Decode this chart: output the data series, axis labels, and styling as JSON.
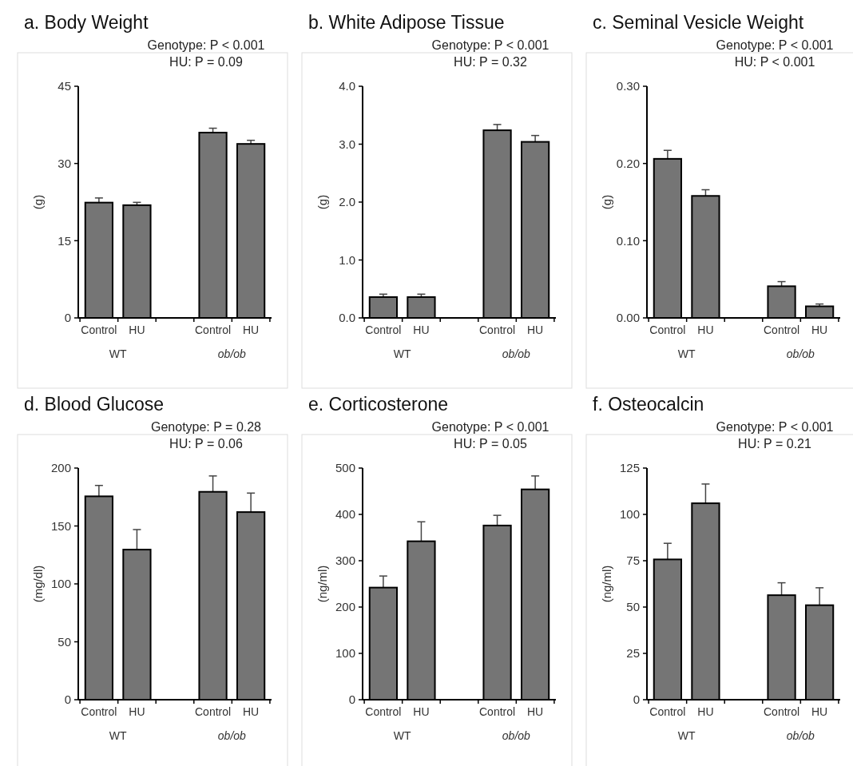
{
  "chart_data": [
    {
      "type": "bar",
      "title": "a. Body Weight",
      "ylabel": "(g)",
      "categories": [
        "Control",
        "HU",
        null,
        "Control",
        "HU"
      ],
      "color": "#757575",
      "values": [
        22.4,
        21.9,
        null,
        36.0,
        33.8
      ],
      "errors": [
        0.9,
        0.55,
        null,
        0.85,
        0.7
      ],
      "ylim": [
        0,
        45
      ],
      "yticks": [
        0,
        15,
        30,
        45
      ],
      "annotations": [
        "Genotype:  P < 0.001",
        "HU: P = 0.09",
        "WT",
        "ob/ob"
      ]
    },
    {
      "type": "bar",
      "title": "b. White Adipose Tissue",
      "ylabel": "(g)",
      "categories": [
        "Control",
        "HU",
        null,
        "Control",
        "HU"
      ],
      "color": "#757575",
      "values": [
        0.36,
        0.36,
        null,
        3.24,
        3.04
      ],
      "errors": [
        0.05,
        0.05,
        null,
        0.1,
        0.11
      ],
      "ylim": [
        0,
        4
      ],
      "yticks": [
        {
          "value": 0,
          "label": "0.0"
        },
        {
          "value": 1,
          "label": "1.0"
        },
        {
          "value": 2,
          "label": "2.0"
        },
        {
          "value": 3,
          "label": "3.0"
        },
        {
          "value": 4,
          "label": "4.0"
        }
      ],
      "annotations": [
        "Genotype:  P < 0.001",
        "HU: P = 0.32",
        "WT",
        "ob/ob"
      ]
    },
    {
      "type": "bar",
      "title": "c. Seminal Vesicle Weight",
      "ylabel": "(g)",
      "categories": [
        "Control",
        "HU",
        null,
        "Control",
        "HU"
      ],
      "color": "#757575",
      "values": [
        0.206,
        0.158,
        null,
        0.041,
        0.015
      ],
      "errors": [
        0.011,
        0.008,
        null,
        0.006,
        0.003
      ],
      "ylim": [
        0,
        0.3
      ],
      "yticks": [
        {
          "value": 0,
          "label": "0.00"
        },
        {
          "value": 0.1,
          "label": "0.10"
        },
        {
          "value": 0.2,
          "label": "0.20"
        },
        {
          "value": 0.3,
          "label": "0.30"
        }
      ],
      "annotations": [
        "Genotype:  P < 0.001",
        "HU: P < 0.001",
        "WT",
        "ob/ob"
      ]
    },
    {
      "type": "bar",
      "title": "d. Blood Glucose",
      "ylabel": "(mg/dl)",
      "categories": [
        "Control",
        "HU",
        null,
        "Control",
        "HU"
      ],
      "color": "#757575",
      "values": [
        175.6,
        129.6,
        null,
        179.5,
        162
      ],
      "errors": [
        9.4,
        17.3,
        null,
        13.7,
        16.4
      ],
      "ylim": [
        0,
        200
      ],
      "yticks": [
        0,
        50,
        100,
        150,
        200
      ],
      "annotations": [
        "Genotype:  P = 0.28",
        "HU: P = 0.06",
        "WT",
        "ob/ob"
      ]
    },
    {
      "type": "bar",
      "title": "e. Corticosterone",
      "ylabel": "(ng/ml)",
      "categories": [
        "Control",
        "HU",
        null,
        "Control",
        "HU"
      ],
      "color": "#757575",
      "values": [
        242,
        342,
        null,
        376,
        454
      ],
      "errors": [
        25,
        42,
        null,
        22,
        29
      ],
      "ylim": [
        0,
        500
      ],
      "yticks": [
        0,
        100,
        200,
        300,
        400,
        500
      ],
      "annotations": [
        "Genotype:  P < 0.001",
        "HU: P = 0.05",
        "WT",
        "ob/ob"
      ]
    },
    {
      "type": "bar",
      "title": "f. Osteocalcin",
      "ylabel": "(ng/ml)",
      "categories": [
        "Control",
        "HU",
        null,
        "Control",
        "HU"
      ],
      "color": "#757575",
      "values": [
        75.7,
        106,
        null,
        56.4,
        51
      ],
      "errors": [
        8.7,
        10.4,
        null,
        6.7,
        9.4
      ],
      "ylim": [
        0,
        125
      ],
      "yticks": [
        0,
        25,
        50,
        75,
        100,
        125
      ],
      "annotations": [
        "Genotype:  P < 0.001",
        "HU: P = 0.21",
        "WT",
        "ob/ob"
      ]
    }
  ]
}
